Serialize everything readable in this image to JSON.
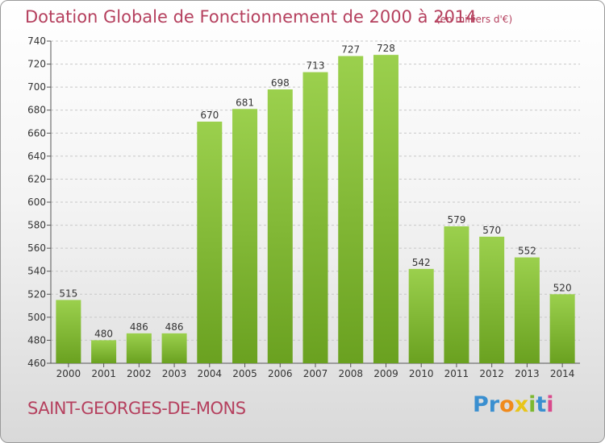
{
  "header": {
    "title": "Dotation Globale de Fonctionnement de 2000 à 2014",
    "unit": "(en milliers d'€)"
  },
  "footer": {
    "commune": "SAINT-GEORGES-DE-MONS",
    "logo_letters": [
      "P",
      "r",
      "o",
      "x",
      "i",
      "t",
      "i"
    ],
    "logo_colors": [
      "#3a8fd0",
      "#3a8fd0",
      "#f08a1c",
      "#e8c51a",
      "#7cb82f",
      "#3a8fd0",
      "#d94a8c"
    ]
  },
  "chart_data": {
    "type": "bar",
    "title": "Dotation Globale de Fonctionnement de 2000 à 2014",
    "categories": [
      "2000",
      "2001",
      "2002",
      "2003",
      "2004",
      "2005",
      "2006",
      "2007",
      "2008",
      "2009",
      "2010",
      "2011",
      "2012",
      "2013",
      "2014"
    ],
    "values": [
      515,
      480,
      486,
      486,
      670,
      681,
      698,
      713,
      727,
      728,
      542,
      579,
      570,
      552,
      520
    ],
    "ylim": [
      460,
      740
    ],
    "yticks": [
      460,
      480,
      500,
      520,
      540,
      560,
      580,
      600,
      620,
      640,
      660,
      680,
      700,
      720,
      740
    ],
    "grid": true,
    "bar_color_top": "#9bd04d",
    "bar_color_bottom": "#6aa120"
  }
}
